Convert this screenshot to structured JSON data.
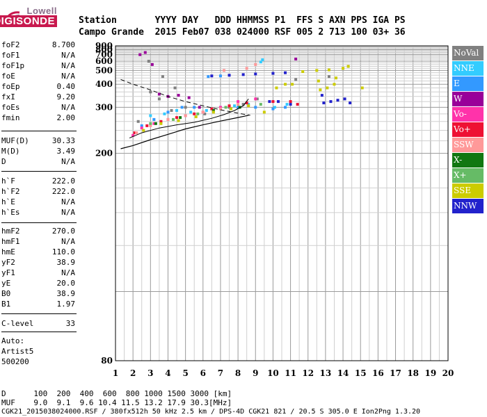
{
  "logo": {
    "line1": "Lowell",
    "line2": "DIGISONDE"
  },
  "header": {
    "labels": "Station       YYYY DAY   DDD HHMMSS P1  FFS S AXN PPS IGA PS",
    "values": "Campo Grande  2015 Feb07 038 024000 RSF 005 2 713 100 03+ 36"
  },
  "params": [
    {
      "label": "foF2",
      "value": "8.700"
    },
    {
      "label": "foF1",
      "value": "N/A"
    },
    {
      "label": "foF1p",
      "value": "N/A"
    },
    {
      "label": "foE",
      "value": "N/A"
    },
    {
      "label": "foEp",
      "value": "0.40"
    },
    {
      "label": "fxI",
      "value": "9.20"
    },
    {
      "label": "foEs",
      "value": "N/A"
    },
    {
      "label": "fmin",
      "value": "2.00"
    },
    {
      "label": "MUF(D)",
      "value": "30.33"
    },
    {
      "label": "M(D)",
      "value": "3.49"
    },
    {
      "label": "D",
      "value": "N/A"
    },
    {
      "label": "h`F",
      "value": "222.0"
    },
    {
      "label": "h`F2",
      "value": "222.0"
    },
    {
      "label": "h`E",
      "value": "N/A"
    },
    {
      "label": "h`Es",
      "value": "N/A"
    },
    {
      "label": "hmF2",
      "value": "270.0"
    },
    {
      "label": "hmF1",
      "value": "N/A"
    },
    {
      "label": "hmE",
      "value": "110.0"
    },
    {
      "label": "yF2",
      "value": "38.9"
    },
    {
      "label": "yF1",
      "value": "N/A"
    },
    {
      "label": "yE",
      "value": "20.0"
    },
    {
      "label": "B0",
      "value": "38.9"
    },
    {
      "label": "B1",
      "value": "1.97"
    },
    {
      "label": "C-level",
      "value": "33"
    }
  ],
  "auto": {
    "line1": "Auto:",
    "line2": "Artist5",
    "line3": "500200"
  },
  "legend": [
    {
      "label": "NoVal",
      "color": "#808080"
    },
    {
      "label": "NNE",
      "color": "#33ccff"
    },
    {
      "label": "E",
      "color": "#3399ff"
    },
    {
      "label": "W",
      "color": "#990099"
    },
    {
      "label": "Vo-",
      "color": "#ff33aa"
    },
    {
      "label": "Vo+",
      "color": "#ee1133"
    },
    {
      "label": "SSW",
      "color": "#ff9999"
    },
    {
      "label": "X-",
      "color": "#117711"
    },
    {
      "label": "X+",
      "color": "#66bb66"
    },
    {
      "label": "SSE",
      "color": "#cccc00"
    },
    {
      "label": "NNW",
      "color": "#2222cc"
    }
  ],
  "chart_data": {
    "type": "scatter",
    "title": "",
    "xlabel": "",
    "ylabel": "",
    "xlim": [
      1,
      20
    ],
    "ylim": [
      80,
      900
    ],
    "y_scale": "reciprocal",
    "x_ticks": [
      1,
      2,
      3,
      4,
      5,
      6,
      7,
      8,
      9,
      10,
      11,
      12,
      13,
      14,
      15,
      16,
      17,
      18,
      19,
      20
    ],
    "y_ticks": [
      80,
      200,
      300,
      400,
      500,
      600,
      700,
      800,
      900
    ],
    "grid": true,
    "series": [
      {
        "name": "NoVal",
        "points": [
          [
            2.3,
            260
          ],
          [
            3.0,
            360
          ],
          [
            3.5,
            330
          ],
          [
            4.2,
            290
          ],
          [
            5.0,
            300
          ],
          [
            6.1,
            280
          ],
          [
            7.5,
            300
          ],
          [
            8.3,
            310
          ],
          [
            9.1,
            330
          ],
          [
            11.3,
            430
          ],
          [
            13.2,
            450
          ],
          [
            2.9,
            600
          ],
          [
            3.7,
            450
          ],
          [
            4.4,
            380
          ]
        ]
      },
      {
        "name": "NNE",
        "points": [
          [
            3.0,
            275
          ],
          [
            3.8,
            280
          ],
          [
            4.5,
            290
          ],
          [
            5.3,
            285
          ],
          [
            6.2,
            290
          ],
          [
            7.0,
            300
          ],
          [
            7.8,
            305
          ],
          [
            8.6,
            310
          ],
          [
            9.3,
            590
          ],
          [
            9.4,
            620
          ],
          [
            10.1,
            300
          ],
          [
            10.8,
            310
          ]
        ]
      },
      {
        "name": "E",
        "points": [
          [
            2.5,
            250
          ],
          [
            3.2,
            265
          ],
          [
            4.0,
            285
          ],
          [
            4.8,
            300
          ],
          [
            5.5,
            300
          ],
          [
            6.3,
            450
          ],
          [
            7.0,
            455
          ],
          [
            8.0,
            300
          ],
          [
            9.0,
            300
          ],
          [
            10.0,
            295
          ],
          [
            10.7,
            300
          ]
        ]
      },
      {
        "name": "W",
        "points": [
          [
            2.4,
            700
          ],
          [
            2.7,
            740
          ],
          [
            3.1,
            560
          ],
          [
            3.5,
            350
          ],
          [
            4.0,
            340
          ],
          [
            4.6,
            345
          ],
          [
            5.2,
            335
          ],
          [
            5.8,
            300
          ],
          [
            11.3,
            630
          ]
        ]
      },
      {
        "name": "Vo-",
        "points": [
          [
            2.0,
            230
          ],
          [
            2.5,
            245
          ],
          [
            3.2,
            255
          ],
          [
            4.0,
            265
          ],
          [
            5.0,
            275
          ],
          [
            6.0,
            285
          ],
          [
            7.0,
            300
          ],
          [
            8.0,
            320
          ],
          [
            9.0,
            330
          ]
        ]
      },
      {
        "name": "Vo+",
        "points": [
          [
            2.1,
            235
          ],
          [
            2.8,
            250
          ],
          [
            3.6,
            260
          ],
          [
            4.5,
            270
          ],
          [
            5.5,
            280
          ],
          [
            6.5,
            295
          ],
          [
            7.5,
            305
          ],
          [
            8.5,
            315
          ],
          [
            10.0,
            320
          ],
          [
            11.0,
            320
          ],
          [
            11.4,
            310
          ]
        ]
      },
      {
        "name": "SSW",
        "points": [
          [
            2.2,
            235
          ],
          [
            3.0,
            250
          ],
          [
            4.0,
            265
          ],
          [
            5.0,
            275
          ],
          [
            6.0,
            285
          ],
          [
            7.0,
            295
          ],
          [
            8.0,
            310
          ],
          [
            9.0,
            560
          ],
          [
            7.2,
            500
          ],
          [
            8.5,
            520
          ]
        ]
      },
      {
        "name": "X-",
        "points": [
          [
            3.3,
            255
          ],
          [
            4.7,
            270
          ],
          [
            6.6,
            290
          ],
          [
            8.1,
            300
          ]
        ]
      },
      {
        "name": "X+",
        "points": [
          [
            3.0,
            255
          ],
          [
            4.3,
            265
          ],
          [
            5.7,
            280
          ],
          [
            7.3,
            300
          ],
          [
            9.3,
            310
          ]
        ]
      },
      {
        "name": "SSE",
        "points": [
          [
            2.6,
            240
          ],
          [
            3.6,
            255
          ],
          [
            4.6,
            262
          ],
          [
            5.6,
            272
          ],
          [
            6.6,
            285
          ],
          [
            7.6,
            295
          ],
          [
            8.6,
            305
          ],
          [
            9.5,
            285
          ],
          [
            10.2,
            380
          ],
          [
            10.7,
            400
          ],
          [
            11.1,
            400
          ],
          [
            11.7,
            490
          ],
          [
            12.6,
            420
          ],
          [
            13.1,
            380
          ],
          [
            13.5,
            400
          ],
          [
            12.5,
            500
          ],
          [
            13.2,
            505
          ],
          [
            14.0,
            520
          ],
          [
            14.3,
            540
          ],
          [
            15.1,
            380
          ],
          [
            12.7,
            370
          ],
          [
            13.6,
            440
          ]
        ]
      },
      {
        "name": "NNW",
        "points": [
          [
            6.5,
            455
          ],
          [
            7.5,
            460
          ],
          [
            8.3,
            465
          ],
          [
            9.0,
            470
          ],
          [
            10.0,
            475
          ],
          [
            10.7,
            480
          ],
          [
            9.8,
            320
          ],
          [
            10.3,
            320
          ],
          [
            11.0,
            310
          ],
          [
            12.9,
            315
          ],
          [
            13.3,
            320
          ],
          [
            13.7,
            325
          ],
          [
            14.1,
            330
          ],
          [
            14.4,
            315
          ],
          [
            12.8,
            345
          ]
        ]
      }
    ],
    "bottom_table": {
      "d_label": "D",
      "d_values": [
        "100",
        "200",
        "400",
        "600",
        "800",
        "1000",
        "1500",
        "3000",
        "[km]"
      ],
      "muf_label": "MUF",
      "muf_values": [
        "9.0",
        "9.1",
        "9.6",
        "10.4",
        "11.5",
        "13.2",
        "17.9",
        "30.3",
        "[MHz]"
      ]
    },
    "footer": "CGK21_2015038024000.RSF / 380fx512h 50 kHz 2.5 km / DPS-4D CGK21 821 / 20.5 S 305.0 E Ion2Png 1.3.20"
  }
}
